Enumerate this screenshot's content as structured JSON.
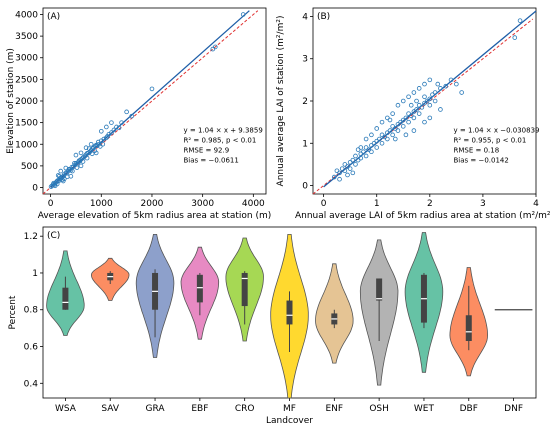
{
  "chart_data": [
    {
      "type": "scatter",
      "panel_label": "(A)",
      "xlabel": "Average elevation of 5km radius area at station (m)",
      "ylabel": "Elevation of station (m)",
      "xlim": [
        -150,
        4250
      ],
      "ylim": [
        -150,
        4150
      ],
      "xticks": [
        0,
        1000,
        2000,
        3000,
        4000
      ],
      "yticks": [
        0,
        500,
        1000,
        1500,
        2000,
        2500,
        3000,
        3500,
        4000
      ],
      "fit_line": {
        "slope": 1.04,
        "intercept": 9.3859,
        "color": "#1f5fa8"
      },
      "one_to_one_line": {
        "color": "#e03030",
        "style": "dashed"
      },
      "annotation": [
        "y = 1.04 × x + 9.3859",
        "R² = 0.985, p < 0.01",
        "RMSE = 92.9",
        "Bias = −0.0611"
      ],
      "point_color": "#2a7ab9",
      "points": [
        [
          10,
          20
        ],
        [
          30,
          40
        ],
        [
          50,
          70
        ],
        [
          80,
          70
        ],
        [
          100,
          110
        ],
        [
          120,
          140
        ],
        [
          140,
          160
        ],
        [
          160,
          150
        ],
        [
          180,
          210
        ],
        [
          200,
          210
        ],
        [
          220,
          240
        ],
        [
          250,
          260
        ],
        [
          270,
          300
        ],
        [
          300,
          340
        ],
        [
          320,
          330
        ],
        [
          350,
          380
        ],
        [
          380,
          420
        ],
        [
          400,
          400
        ],
        [
          420,
          470
        ],
        [
          450,
          480
        ],
        [
          480,
          520
        ],
        [
          500,
          560
        ],
        [
          520,
          540
        ],
        [
          550,
          590
        ],
        [
          580,
          620
        ],
        [
          600,
          650
        ],
        [
          630,
          680
        ],
        [
          650,
          700
        ],
        [
          680,
          730
        ],
        [
          700,
          760
        ],
        [
          720,
          790
        ],
        [
          750,
          800
        ],
        [
          780,
          830
        ],
        [
          800,
          860
        ],
        [
          830,
          900
        ],
        [
          850,
          920
        ],
        [
          880,
          960
        ],
        [
          900,
          980
        ],
        [
          920,
          970
        ],
        [
          950,
          1000
        ],
        [
          1000,
          1080
        ],
        [
          1050,
          1120
        ],
        [
          1100,
          1150
        ],
        [
          1120,
          1180
        ],
        [
          1150,
          1230
        ],
        [
          1200,
          1270
        ],
        [
          1250,
          1330
        ],
        [
          1300,
          1400
        ],
        [
          1350,
          1380
        ],
        [
          1400,
          1500
        ],
        [
          1500,
          1750
        ],
        [
          1200,
          1500
        ],
        [
          1000,
          1300
        ],
        [
          900,
          800
        ],
        [
          700,
          920
        ],
        [
          600,
          800
        ],
        [
          500,
          750
        ],
        [
          400,
          260
        ],
        [
          300,
          450
        ],
        [
          200,
          380
        ],
        [
          150,
          280
        ],
        [
          250,
          150
        ],
        [
          600,
          500
        ],
        [
          800,
          1000
        ],
        [
          1100,
          1400
        ],
        [
          1600,
          1650
        ],
        [
          2000,
          2280
        ],
        [
          3200,
          3200
        ],
        [
          3250,
          3250
        ],
        [
          3800,
          4000
        ],
        [
          60,
          100
        ],
        [
          90,
          40
        ],
        [
          130,
          80
        ],
        [
          170,
          260
        ],
        [
          230,
          180
        ],
        [
          270,
          200
        ],
        [
          330,
          250
        ],
        [
          360,
          420
        ],
        [
          430,
          380
        ],
        [
          470,
          560
        ],
        [
          520,
          460
        ],
        [
          560,
          620
        ],
        [
          640,
          600
        ],
        [
          720,
          680
        ],
        [
          760,
          900
        ],
        [
          820,
          780
        ],
        [
          870,
          850
        ],
        [
          940,
          1050
        ],
        [
          980,
          950
        ],
        [
          1030,
          1000
        ]
      ]
    },
    {
      "type": "scatter",
      "panel_label": "(B)",
      "xlabel": "Annual average LAI of 5km radius area at station (m²/m²)",
      "ylabel": "Annual average LAI of station (m²/m²)",
      "xlim": [
        -0.2,
        4.0
      ],
      "ylim": [
        -0.2,
        4.2
      ],
      "xticks": [
        0,
        1,
        2,
        3,
        4
      ],
      "yticks": [
        0,
        1,
        2,
        3,
        4
      ],
      "fit_line": {
        "slope": 1.04,
        "intercept": -0.030839,
        "color": "#1f5fa8"
      },
      "one_to_one_line": {
        "color": "#e03030",
        "style": "dashed"
      },
      "annotation": [
        "y = 1.04 × x −0.030839",
        "R² = 0.955, p < 0.01",
        "RMSE = 0.18",
        "Bias = −0.0142"
      ],
      "point_color": "#2a7ab9",
      "points": [
        [
          0.2,
          0.2
        ],
        [
          0.25,
          0.35
        ],
        [
          0.3,
          0.3
        ],
        [
          0.35,
          0.4
        ],
        [
          0.4,
          0.35
        ],
        [
          0.4,
          0.5
        ],
        [
          0.45,
          0.45
        ],
        [
          0.5,
          0.55
        ],
        [
          0.5,
          0.4
        ],
        [
          0.55,
          0.6
        ],
        [
          0.6,
          0.5
        ],
        [
          0.6,
          0.7
        ],
        [
          0.65,
          0.6
        ],
        [
          0.7,
          0.75
        ],
        [
          0.7,
          0.65
        ],
        [
          0.75,
          0.8
        ],
        [
          0.8,
          0.7
        ],
        [
          0.8,
          0.9
        ],
        [
          0.85,
          0.85
        ],
        [
          0.9,
          0.95
        ],
        [
          0.9,
          0.8
        ],
        [
          0.95,
          1.0
        ],
        [
          1.0,
          1.05
        ],
        [
          1.0,
          0.9
        ],
        [
          1.05,
          1.1
        ],
        [
          1.1,
          1.0
        ],
        [
          1.1,
          1.2
        ],
        [
          1.15,
          1.15
        ],
        [
          1.2,
          1.25
        ],
        [
          1.2,
          1.1
        ],
        [
          1.25,
          1.3
        ],
        [
          1.3,
          1.2
        ],
        [
          1.3,
          1.4
        ],
        [
          1.35,
          1.35
        ],
        [
          1.4,
          1.45
        ],
        [
          1.4,
          1.3
        ],
        [
          1.45,
          1.5
        ],
        [
          1.5,
          1.55
        ],
        [
          1.5,
          1.4
        ],
        [
          1.55,
          1.6
        ],
        [
          1.6,
          1.5
        ],
        [
          1.6,
          1.7
        ],
        [
          1.65,
          1.65
        ],
        [
          1.7,
          1.75
        ],
        [
          1.7,
          1.6
        ],
        [
          1.75,
          1.8
        ],
        [
          1.8,
          1.9
        ],
        [
          1.8,
          1.7
        ],
        [
          1.85,
          1.85
        ],
        [
          1.9,
          1.95
        ],
        [
          1.9,
          2.1
        ],
        [
          1.95,
          2.0
        ],
        [
          2.0,
          2.05
        ],
        [
          2.0,
          1.9
        ],
        [
          2.05,
          2.15
        ],
        [
          2.1,
          2.0
        ],
        [
          2.1,
          2.2
        ],
        [
          2.2,
          2.3
        ],
        [
          2.3,
          2.35
        ],
        [
          2.4,
          2.5
        ],
        [
          1.5,
          2.0
        ],
        [
          1.4,
          1.9
        ],
        [
          1.6,
          2.1
        ],
        [
          1.7,
          2.2
        ],
        [
          1.8,
          2.3
        ],
        [
          1.3,
          1.7
        ],
        [
          1.2,
          1.6
        ],
        [
          1.1,
          1.5
        ],
        [
          1.0,
          1.35
        ],
        [
          2.2,
          1.8
        ],
        [
          2.0,
          1.6
        ],
        [
          1.9,
          1.5
        ],
        [
          1.7,
          1.3
        ],
        [
          0.9,
          1.2
        ],
        [
          0.8,
          1.1
        ],
        [
          0.7,
          0.9
        ],
        [
          1.9,
          2.4
        ],
        [
          2.0,
          2.5
        ],
        [
          2.5,
          2.4
        ],
        [
          2.6,
          2.2
        ],
        [
          3.7,
          3.9
        ],
        [
          3.6,
          3.5
        ],
        [
          0.3,
          0.15
        ],
        [
          0.45,
          0.25
        ],
        [
          1.35,
          1.1
        ],
        [
          1.55,
          1.2
        ],
        [
          1.65,
          1.9
        ],
        [
          1.75,
          2.0
        ],
        [
          2.15,
          2.4
        ],
        [
          0.55,
          0.3
        ],
        [
          0.65,
          0.85
        ],
        [
          1.25,
          1.55
        ]
      ]
    },
    {
      "type": "violin",
      "panel_label": "(C)",
      "xlabel": "Landcover",
      "ylabel": "Percent",
      "ylim": [
        0.32,
        1.25
      ],
      "yticks": [
        0.4,
        0.6,
        0.8,
        1.0,
        1.2
      ],
      "categories": [
        "WSA",
        "SAV",
        "GRA",
        "EBF",
        "CRO",
        "MF",
        "ENF",
        "OSH",
        "WET",
        "DBF",
        "DNF"
      ],
      "colors": [
        "#66c2a5",
        "#fc8d62",
        "#8da0cb",
        "#e78ac3",
        "#a6d854",
        "#ffd92f",
        "#e5c494",
        "#b3b3b3",
        "#66c2a5",
        "#fc8d62",
        "#8da0cb"
      ],
      "distributions": [
        {
          "min": 0.66,
          "max": 1.12,
          "q1": 0.8,
          "median": 0.84,
          "q3": 0.92,
          "whisker_low": 0.8,
          "whisker_high": 0.98,
          "mode": 0.82
        },
        {
          "min": 0.85,
          "max": 1.08,
          "q1": 0.96,
          "median": 0.98,
          "q3": 1.0,
          "whisker_low": 0.94,
          "whisker_high": 1.01,
          "mode": 0.99
        },
        {
          "min": 0.54,
          "max": 1.21,
          "q1": 0.8,
          "median": 0.9,
          "q3": 1.0,
          "whisker_low": 0.65,
          "whisker_high": 1.02,
          "mode": 0.95
        },
        {
          "min": 0.64,
          "max": 1.14,
          "q1": 0.84,
          "median": 0.92,
          "q3": 0.99,
          "whisker_low": 0.77,
          "whisker_high": 1.0,
          "mode": 0.95
        },
        {
          "min": 0.63,
          "max": 1.19,
          "q1": 0.82,
          "median": 0.97,
          "q3": 1.0,
          "whisker_low": 0.72,
          "whisker_high": 1.01,
          "mode": 0.98
        },
        {
          "min": 0.32,
          "max": 1.21,
          "q1": 0.72,
          "median": 0.77,
          "q3": 0.85,
          "whisker_low": 0.57,
          "whisker_high": 0.9,
          "mode": 0.77
        },
        {
          "min": 0.51,
          "max": 1.05,
          "q1": 0.72,
          "median": 0.75,
          "q3": 0.78,
          "whisker_low": 0.7,
          "whisker_high": 0.8,
          "mode": 0.74
        },
        {
          "min": 0.39,
          "max": 1.18,
          "q1": 0.85,
          "median": 0.86,
          "q3": 0.97,
          "whisker_low": 0.63,
          "whisker_high": 0.97,
          "mode": 0.9
        },
        {
          "min": 0.46,
          "max": 1.22,
          "q1": 0.73,
          "median": 0.86,
          "q3": 0.99,
          "whisker_low": 0.7,
          "whisker_high": 1.0,
          "mode": 0.9
        },
        {
          "min": 0.44,
          "max": 1.03,
          "q1": 0.63,
          "median": 0.68,
          "q3": 0.77,
          "whisker_low": 0.58,
          "whisker_high": 0.93,
          "mode": 0.66
        },
        {
          "single_value": 0.8
        }
      ]
    }
  ]
}
